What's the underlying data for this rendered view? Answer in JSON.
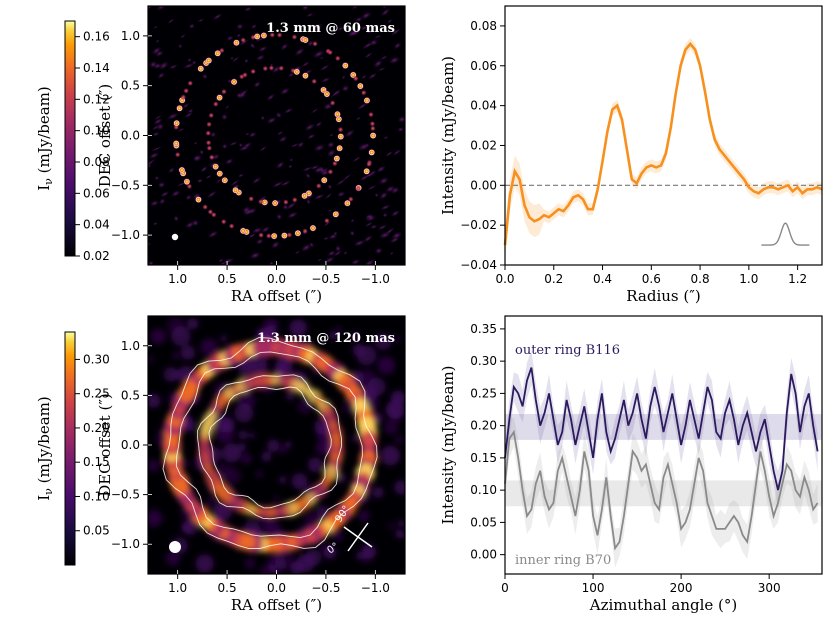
{
  "chart_data": [
    {
      "type": "heatmap",
      "title": "1.3 mm @ 60 mas",
      "xlabel": "RA offset  (″)",
      "ylabel": "DEC offset  (″)",
      "xlim": [
        1.3,
        -1.3
      ],
      "ylim": [
        -1.3,
        1.3
      ],
      "xticks": [
        "1.0",
        "0.5",
        "0.0",
        "−0.5",
        "−1.0"
      ],
      "yticks": [
        "1.0",
        "0.5",
        "0.0",
        "−0.5",
        "−1.0"
      ],
      "colorbar": {
        "label": "Iν (mJy/beam)",
        "min": 0.02,
        "max": 0.17,
        "ticks": [
          "0.16",
          "0.14",
          "0.12",
          "0.10",
          "0.08",
          "0.06",
          "0.04",
          "0.02"
        ]
      },
      "beam": "small white circle"
    },
    {
      "type": "line",
      "xlabel": "Radius (″)",
      "ylabel": "Intensity (mJy/beam)",
      "xlim": [
        0,
        1.3
      ],
      "ylim": [
        -0.04,
        0.09
      ],
      "xticks": [
        "0.0",
        "0.2",
        "0.4",
        "0.6",
        "0.8",
        "1.0",
        "1.2"
      ],
      "yticks": [
        "0.08",
        "0.06",
        "0.04",
        "0.02",
        "0.00",
        "−0.02",
        "−0.04"
      ],
      "series": [
        {
          "name": "radial profile",
          "color": "#f7901e",
          "x": [
            0.0,
            0.02,
            0.04,
            0.06,
            0.08,
            0.1,
            0.12,
            0.14,
            0.16,
            0.18,
            0.2,
            0.22,
            0.24,
            0.26,
            0.28,
            0.3,
            0.32,
            0.34,
            0.36,
            0.38,
            0.4,
            0.42,
            0.44,
            0.46,
            0.48,
            0.5,
            0.52,
            0.54,
            0.56,
            0.58,
            0.6,
            0.62,
            0.64,
            0.66,
            0.68,
            0.7,
            0.72,
            0.74,
            0.76,
            0.78,
            0.8,
            0.82,
            0.84,
            0.86,
            0.88,
            0.9,
            0.92,
            0.94,
            0.96,
            0.98,
            1.0,
            1.02,
            1.04,
            1.06,
            1.08,
            1.1,
            1.12,
            1.14,
            1.16,
            1.18,
            1.2,
            1.22,
            1.24,
            1.26,
            1.28,
            1.3
          ],
          "y": [
            -0.03,
            -0.005,
            0.007,
            0.003,
            -0.01,
            -0.016,
            -0.018,
            -0.017,
            -0.015,
            -0.016,
            -0.014,
            -0.012,
            -0.013,
            -0.01,
            -0.006,
            -0.005,
            -0.007,
            -0.012,
            -0.012,
            -0.002,
            0.012,
            0.027,
            0.038,
            0.04,
            0.033,
            0.018,
            0.003,
            0.001,
            0.006,
            0.009,
            0.01,
            0.009,
            0.01,
            0.016,
            0.029,
            0.046,
            0.06,
            0.068,
            0.071,
            0.068,
            0.06,
            0.047,
            0.033,
            0.023,
            0.018,
            0.015,
            0.012,
            0.009,
            0.006,
            0.003,
            -0.001,
            -0.003,
            -0.004,
            -0.002,
            -0.001,
            -0.001,
            -0.002,
            -0.001,
            0.0,
            -0.003,
            -0.001,
            -0.004,
            -0.002,
            -0.002,
            -0.001,
            -0.002
          ]
        }
      ],
      "reference_line": 0.0,
      "inset": "gray beam profile"
    },
    {
      "type": "heatmap",
      "title": "1.3 mm @ 120 mas",
      "xlabel": "RA offset  (″)",
      "ylabel": "DEC offset  (″)",
      "xlim": [
        1.3,
        -1.3
      ],
      "ylim": [
        -1.3,
        1.3
      ],
      "xticks": [
        "1.0",
        "0.5",
        "0.0",
        "−0.5",
        "−1.0"
      ],
      "yticks": [
        "1.0",
        "0.5",
        "0.0",
        "−0.5",
        "−1.0"
      ],
      "colorbar": {
        "label": "Iν (mJy/beam)",
        "min": 0.0,
        "max": 0.34,
        "ticks": [
          "0.30",
          "0.25",
          "0.20",
          "0.15",
          "0.10",
          "0.05"
        ]
      },
      "annotations": [
        "90°",
        "0°"
      ],
      "beam": "white circle"
    },
    {
      "type": "line",
      "xlabel": "Azimuthal angle (°)",
      "ylabel": "Intensity (mJy/beam)",
      "xlim": [
        0,
        360
      ],
      "ylim": [
        -0.03,
        0.37
      ],
      "xticks": [
        "0",
        "100",
        "200",
        "300"
      ],
      "yticks": [
        "0.35",
        "0.30",
        "0.25",
        "0.20",
        "0.15",
        "0.10",
        "0.05",
        "0.00"
      ],
      "series": [
        {
          "name": "outer ring B116",
          "color": "#2c1a5e",
          "band": [
            0.178,
            0.218
          ],
          "x": [
            0,
            5,
            10,
            15,
            20,
            25,
            30,
            35,
            40,
            45,
            50,
            55,
            60,
            65,
            70,
            75,
            80,
            85,
            90,
            95,
            100,
            105,
            110,
            115,
            120,
            125,
            130,
            135,
            140,
            145,
            150,
            155,
            160,
            165,
            170,
            175,
            180,
            185,
            190,
            195,
            200,
            205,
            210,
            215,
            220,
            225,
            230,
            235,
            240,
            245,
            250,
            255,
            260,
            265,
            270,
            275,
            280,
            285,
            290,
            295,
            300,
            305,
            310,
            315,
            320,
            325,
            330,
            335,
            340,
            345,
            350,
            355
          ],
          "y": [
            0.15,
            0.21,
            0.26,
            0.25,
            0.23,
            0.27,
            0.29,
            0.24,
            0.2,
            0.22,
            0.25,
            0.21,
            0.17,
            0.19,
            0.24,
            0.21,
            0.17,
            0.2,
            0.23,
            0.19,
            0.15,
            0.21,
            0.25,
            0.19,
            0.16,
            0.18,
            0.21,
            0.24,
            0.2,
            0.22,
            0.25,
            0.21,
            0.18,
            0.23,
            0.26,
            0.23,
            0.19,
            0.22,
            0.25,
            0.21,
            0.17,
            0.2,
            0.24,
            0.21,
            0.18,
            0.22,
            0.26,
            0.24,
            0.19,
            0.18,
            0.22,
            0.24,
            0.21,
            0.17,
            0.2,
            0.22,
            0.19,
            0.16,
            0.19,
            0.21,
            0.17,
            0.13,
            0.1,
            0.13,
            0.22,
            0.28,
            0.25,
            0.19,
            0.23,
            0.25,
            0.2,
            0.16
          ]
        },
        {
          "name": "inner ring B70",
          "color": "#8a8a8a",
          "band": [
            0.075,
            0.115
          ],
          "x": [
            0,
            5,
            10,
            15,
            20,
            25,
            30,
            35,
            40,
            45,
            50,
            55,
            60,
            65,
            70,
            75,
            80,
            85,
            90,
            95,
            100,
            105,
            110,
            115,
            120,
            125,
            130,
            135,
            140,
            145,
            150,
            155,
            160,
            165,
            170,
            175,
            180,
            185,
            190,
            195,
            200,
            205,
            210,
            215,
            220,
            225,
            230,
            235,
            240,
            245,
            250,
            255,
            260,
            265,
            270,
            275,
            280,
            285,
            290,
            295,
            300,
            305,
            310,
            315,
            320,
            325,
            330,
            335,
            340,
            345,
            350,
            355
          ],
          "y": [
            0.11,
            0.18,
            0.19,
            0.15,
            0.1,
            0.06,
            0.07,
            0.11,
            0.13,
            0.09,
            0.07,
            0.08,
            0.13,
            0.15,
            0.12,
            0.09,
            0.06,
            0.1,
            0.16,
            0.13,
            0.06,
            0.03,
            0.07,
            0.12,
            0.06,
            0.01,
            0.02,
            0.06,
            0.11,
            0.16,
            0.15,
            0.13,
            0.14,
            0.11,
            0.08,
            0.07,
            0.12,
            0.14,
            0.11,
            0.08,
            0.04,
            0.05,
            0.07,
            0.11,
            0.15,
            0.13,
            0.08,
            0.06,
            0.04,
            0.04,
            0.04,
            0.05,
            0.06,
            0.05,
            0.03,
            0.02,
            0.06,
            0.11,
            0.16,
            0.13,
            0.09,
            0.06,
            0.08,
            0.11,
            0.14,
            0.13,
            0.1,
            0.09,
            0.12,
            0.1,
            0.07,
            0.08
          ]
        }
      ]
    }
  ]
}
